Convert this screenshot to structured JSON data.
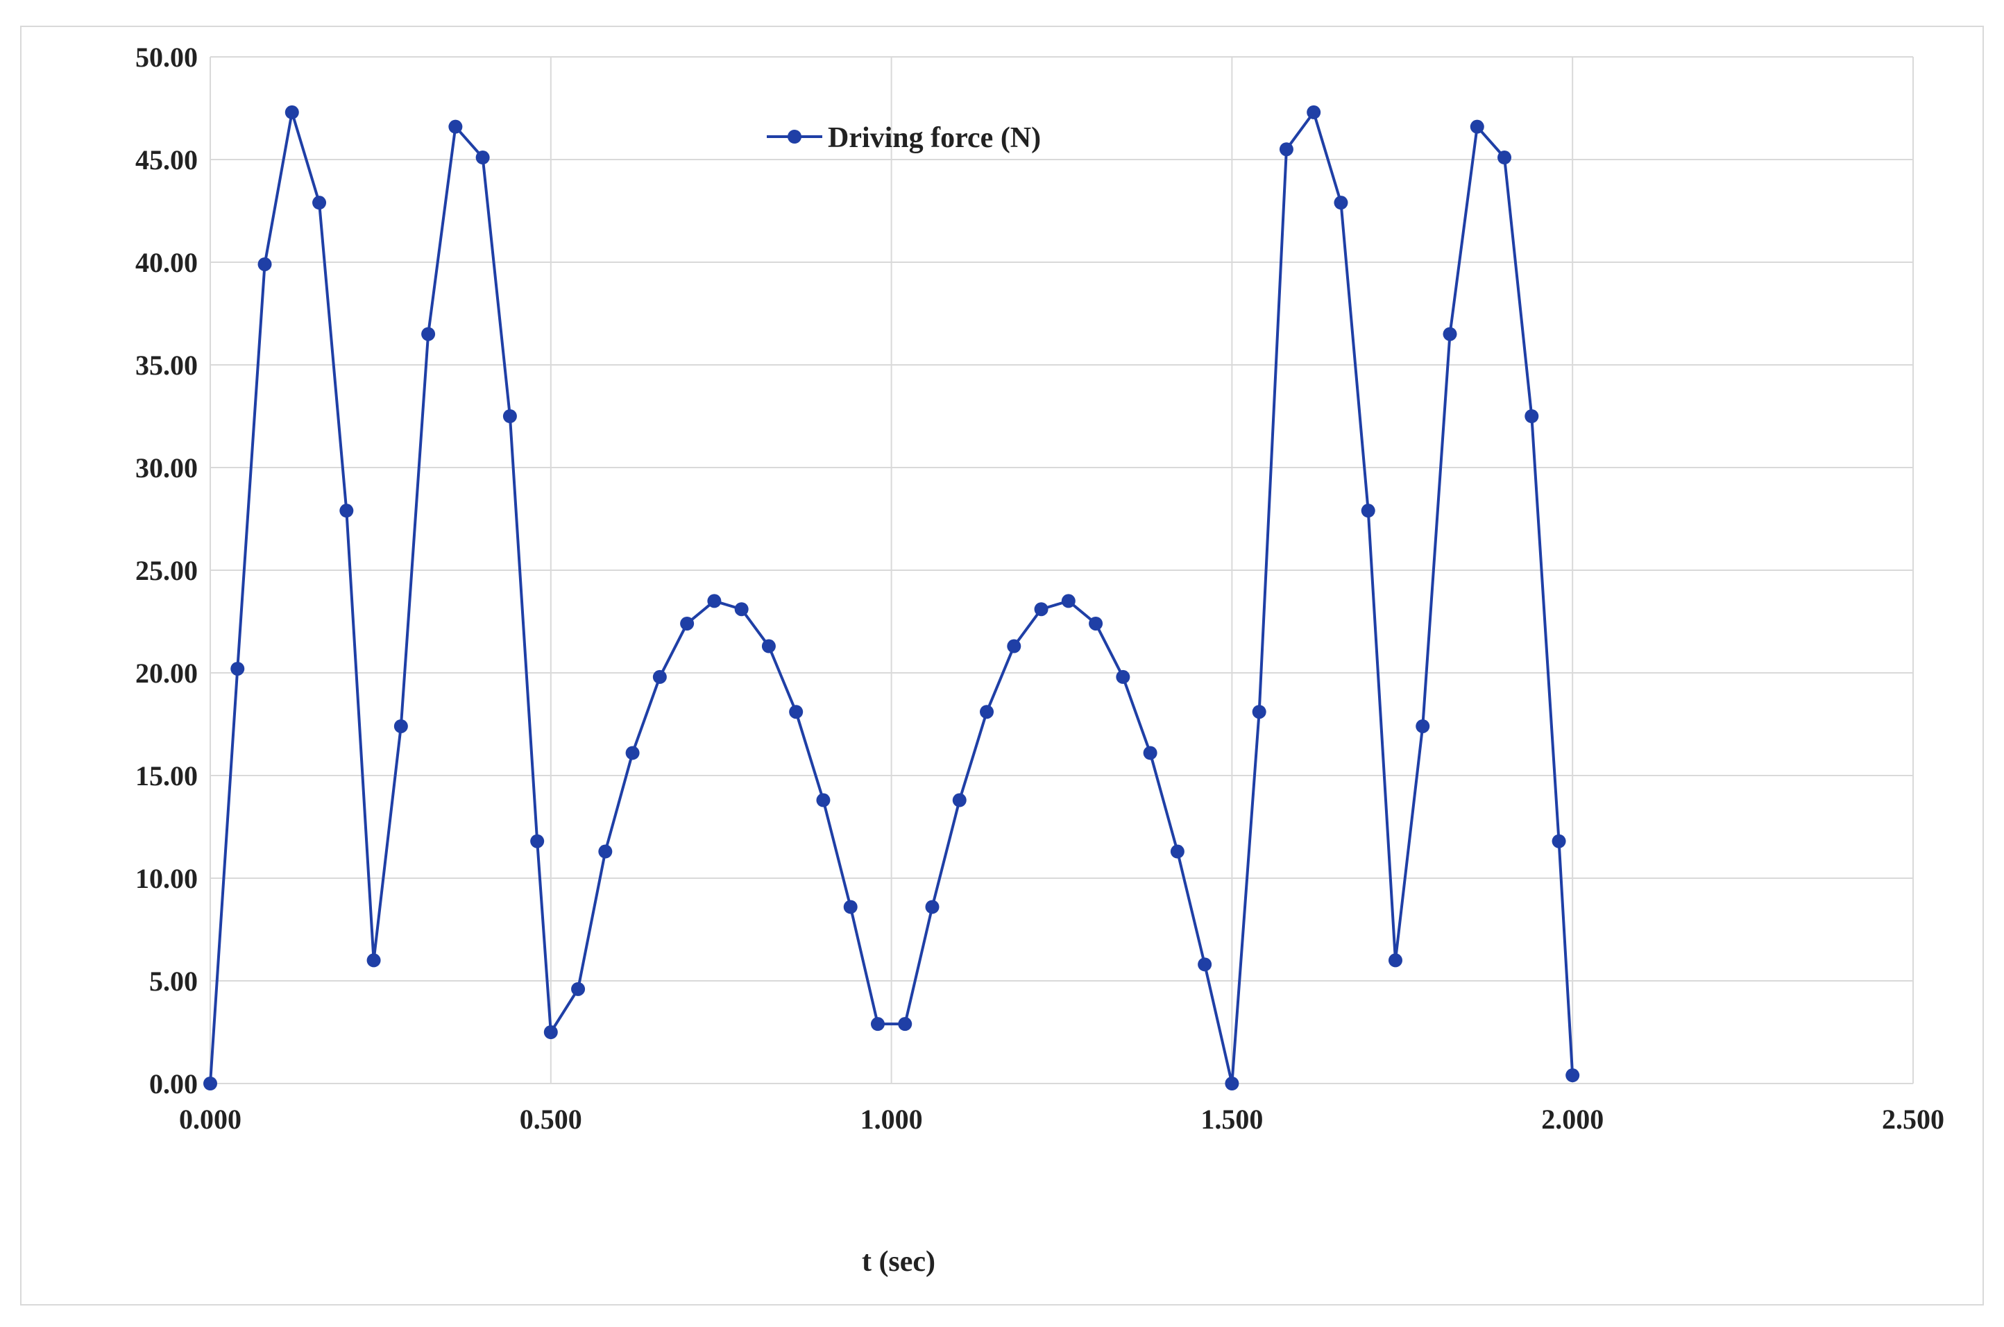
{
  "chart_data": {
    "type": "line",
    "title": "",
    "xlabel": "t (sec)",
    "ylabel": "",
    "xlim": [
      0,
      2.5
    ],
    "ylim": [
      0,
      50
    ],
    "x_ticks": [
      "0.000",
      "0.500",
      "1.000",
      "1.500",
      "2.000",
      "2.500"
    ],
    "y_ticks": [
      "0.00",
      "5.00",
      "10.00",
      "15.00",
      "20.00",
      "25.00",
      "30.00",
      "35.00",
      "40.00",
      "45.00",
      "50.00"
    ],
    "grid": true,
    "legend_position": "top-center",
    "series": [
      {
        "name": "Driving force  (N)",
        "color": "#1f3fa6",
        "marker": "circle",
        "x": [
          0.0,
          0.04,
          0.08,
          0.12,
          0.16,
          0.2,
          0.24,
          0.28,
          0.32,
          0.36,
          0.4,
          0.44,
          0.48,
          0.5,
          0.54,
          0.58,
          0.62,
          0.66,
          0.7,
          0.74,
          0.78,
          0.82,
          0.86,
          0.9,
          0.94,
          0.98,
          1.02,
          1.06,
          1.1,
          1.14,
          1.18,
          1.22,
          1.26,
          1.3,
          1.34,
          1.38,
          1.42,
          1.46,
          1.5,
          1.54,
          1.58,
          1.62,
          1.66,
          1.7,
          1.74,
          1.78,
          1.82,
          1.86,
          1.9,
          1.94,
          1.98,
          2.0
        ],
        "y": [
          0.0,
          20.2,
          39.9,
          47.3,
          42.9,
          27.9,
          6.0,
          17.4,
          36.5,
          46.6,
          45.1,
          32.5,
          11.8,
          2.5,
          4.6,
          11.3,
          16.1,
          19.8,
          22.4,
          23.5,
          23.1,
          21.3,
          18.1,
          13.8,
          8.6,
          2.9,
          2.9,
          8.6,
          13.8,
          18.1,
          21.3,
          23.1,
          23.5,
          22.4,
          19.8,
          16.1,
          11.3,
          5.8,
          0.0,
          18.1,
          45.5,
          47.3,
          42.9,
          27.9,
          6.0,
          17.4,
          36.5,
          46.6,
          45.1,
          32.5,
          11.8,
          0.4
        ]
      }
    ]
  }
}
